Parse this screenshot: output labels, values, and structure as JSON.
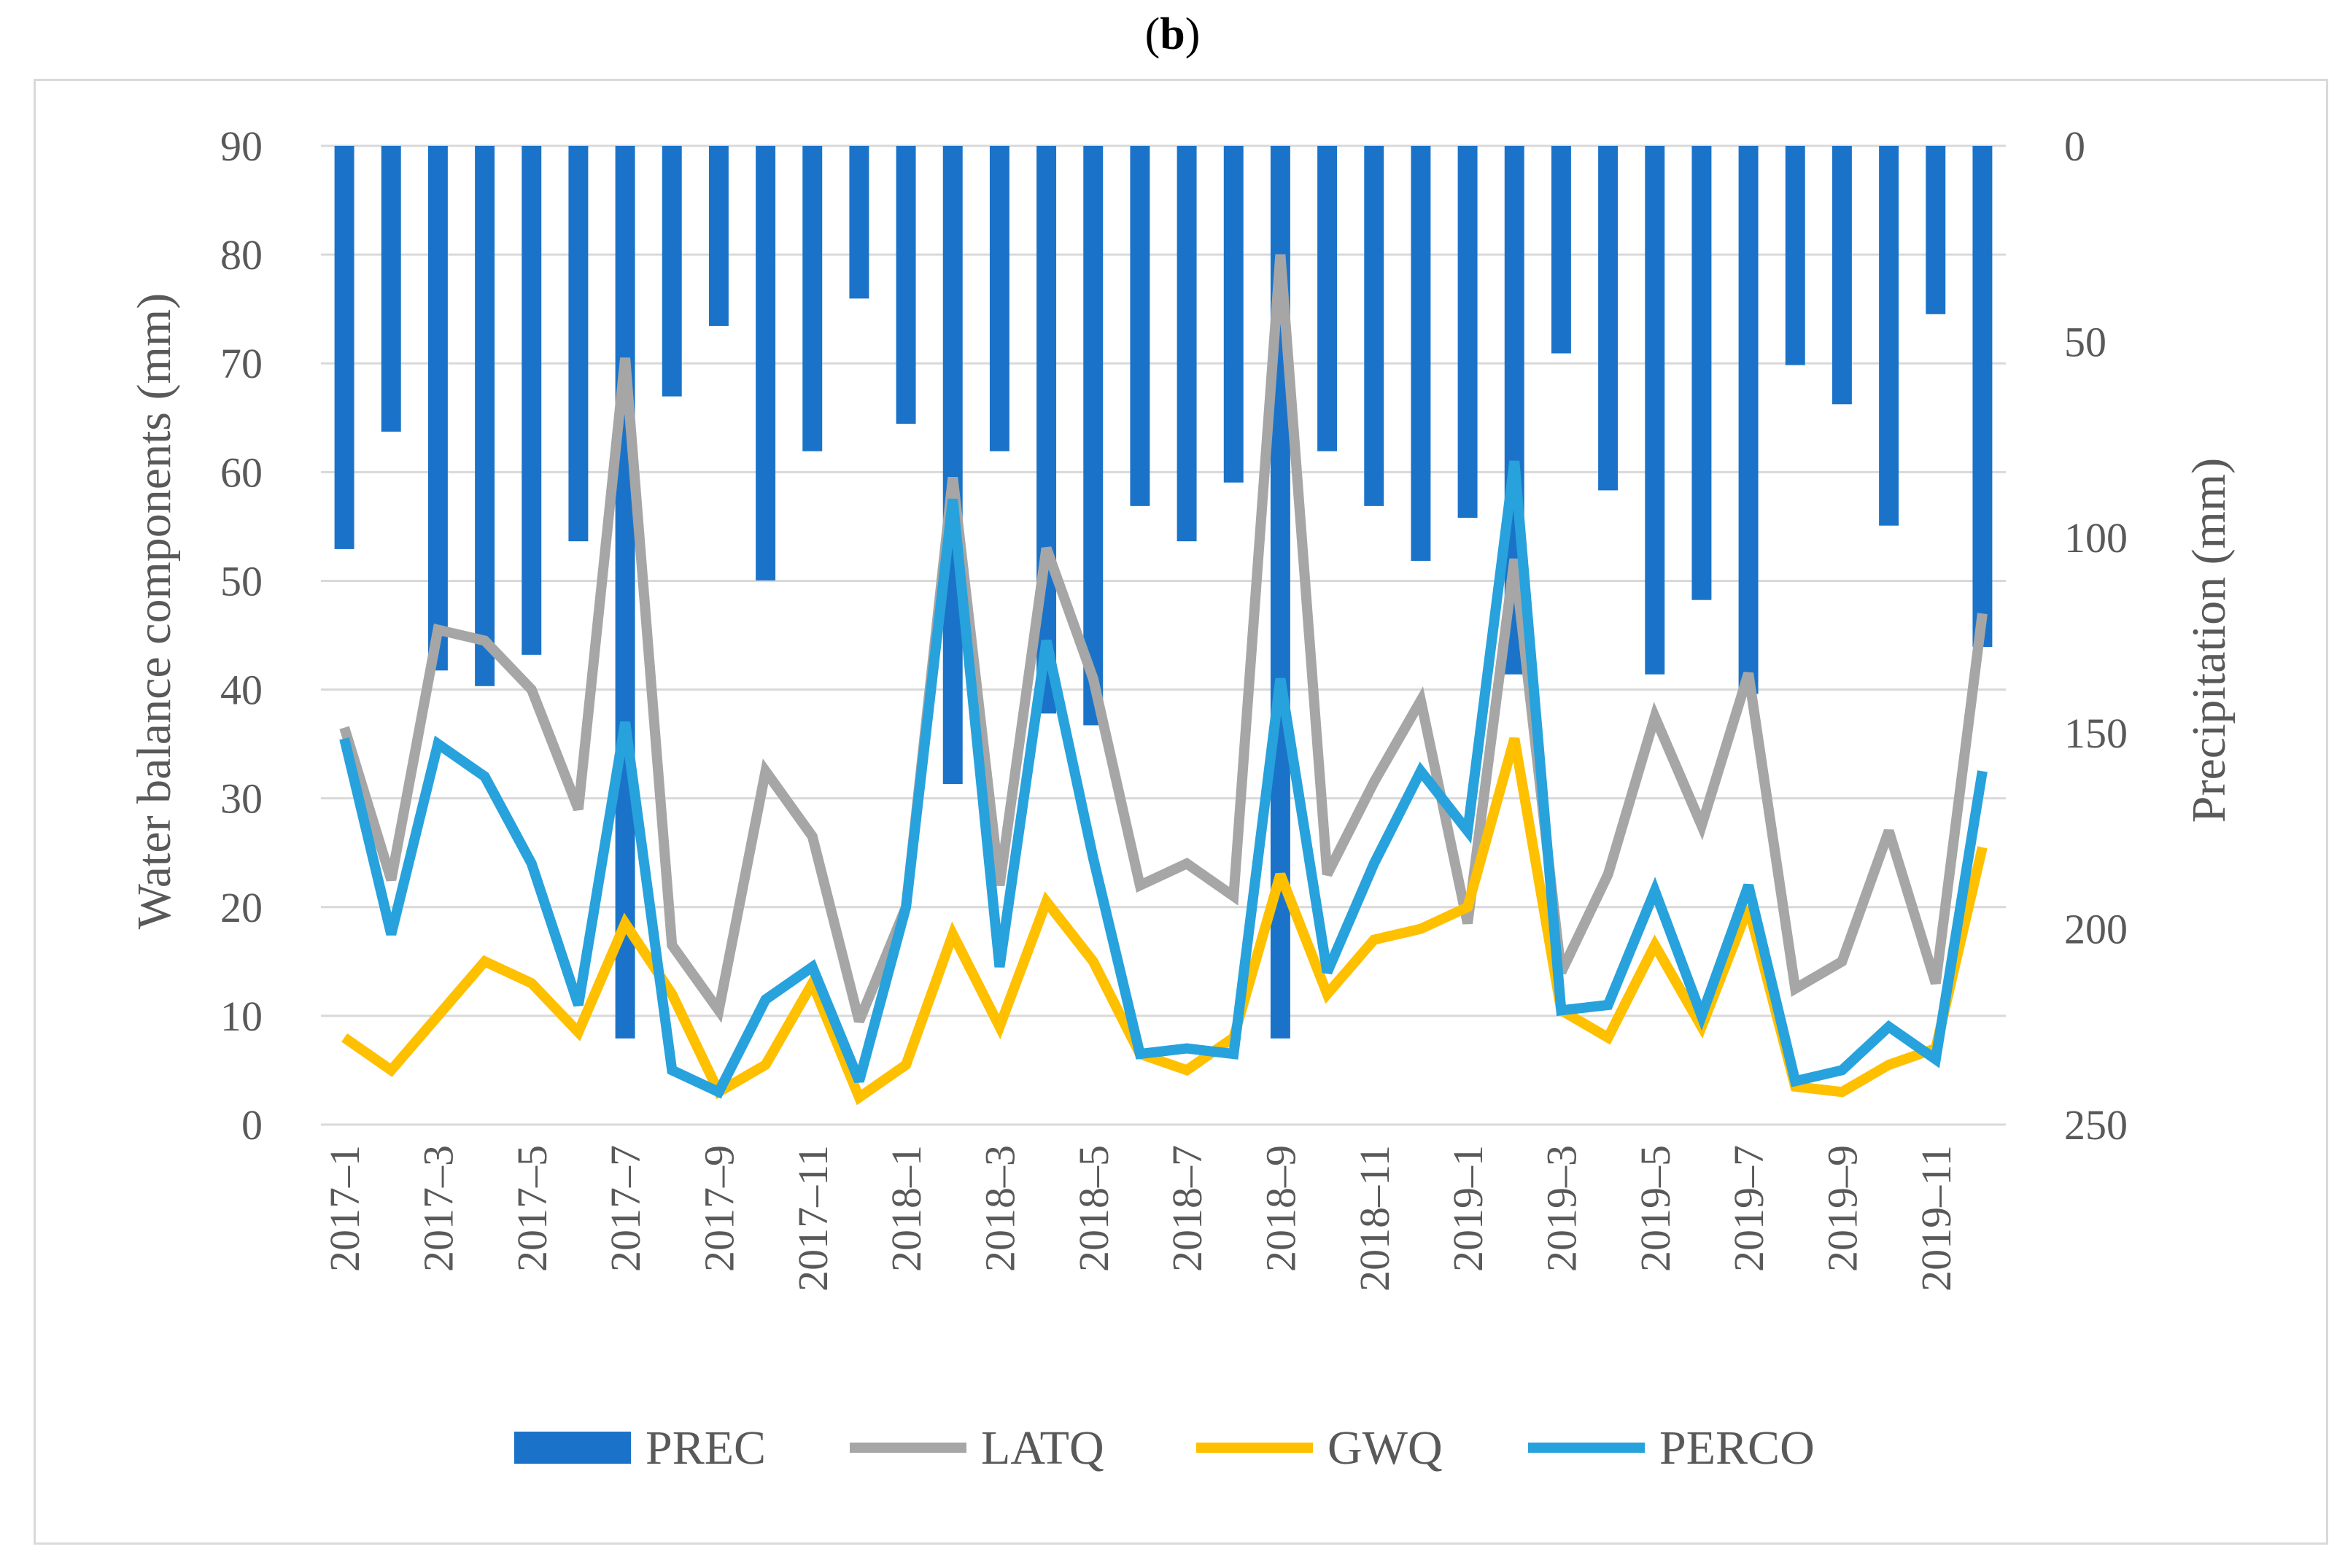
{
  "panel_label": {
    "open": "(",
    "letter": "b",
    "close": ")"
  },
  "chart_data": {
    "type": "bar+line",
    "title": "(b)",
    "categories": [
      "2017–1",
      "2017–2",
      "2017–3",
      "2017–4",
      "2017–5",
      "2017–6",
      "2017–7",
      "2017–8",
      "2017–9",
      "2017–10",
      "2017–11",
      "2017–12",
      "2018–1",
      "2018–2",
      "2018–3",
      "2018–4",
      "2018–5",
      "2018–6",
      "2018–7",
      "2018–8",
      "2018–9",
      "2018–10",
      "2018–11",
      "2018–12",
      "2019–1",
      "2019–2",
      "2019–3",
      "2019–4",
      "2019–5",
      "2019–6",
      "2019–7",
      "2019–8",
      "2019–9",
      "2019–10",
      "2019–11",
      "2019–12"
    ],
    "x_tick_labels": [
      "2017–1",
      "2017–3",
      "2017–5",
      "2017–7",
      "2017–9",
      "2017–11",
      "2018–1",
      "2018–3",
      "2018–5",
      "2018–7",
      "2018–9",
      "2018–11",
      "2019–1",
      "2019–3",
      "2019–5",
      "2019–7",
      "2019–9",
      "2019–11"
    ],
    "ylabel": "Water balance components (mm)",
    "y2label": "Precipitation (mm)",
    "ylim": [
      0,
      90
    ],
    "y_ticks": [
      0,
      10,
      20,
      30,
      40,
      50,
      60,
      70,
      80,
      90
    ],
    "y2lim": [
      250,
      0
    ],
    "y2_ticks": [
      0,
      50,
      100,
      150,
      200,
      250
    ],
    "grid": true,
    "legend_position": "bottom",
    "bar_series": {
      "name": "PREC",
      "axis": "secondary",
      "inverted": true,
      "color": "#1a73c9",
      "values": [
        103,
        73,
        134,
        138,
        130,
        101,
        228,
        64,
        46,
        111,
        78,
        39,
        71,
        163,
        78,
        145,
        148,
        92,
        101,
        86,
        228,
        78,
        92,
        106,
        95,
        135,
        53,
        88,
        135,
        116,
        140,
        56,
        66,
        97,
        43,
        128
      ]
    },
    "series": [
      {
        "name": "LATQ",
        "axis": "primary",
        "color": "#a6a6a6",
        "values": [
          36.5,
          22.5,
          45.5,
          44.5,
          40,
          29,
          70.5,
          16.5,
          10.5,
          32.5,
          26.5,
          9.5,
          20,
          59.5,
          22,
          53,
          41,
          22,
          24,
          21,
          80,
          23,
          31.5,
          39,
          18.5,
          52,
          14,
          23,
          37.5,
          27.5,
          41.5,
          12.5,
          15,
          27,
          13,
          47
        ]
      },
      {
        "name": "GWQ",
        "axis": "primary",
        "color": "#ffc000",
        "values": [
          8,
          5,
          10,
          15,
          13,
          8.5,
          18.5,
          12,
          3,
          5.5,
          13,
          2.5,
          5.5,
          17.5,
          9,
          20.5,
          15,
          6.5,
          5,
          8,
          23,
          12,
          17,
          18,
          20,
          35.5,
          10.5,
          8,
          16.5,
          9,
          20,
          3.5,
          3,
          5.5,
          7,
          25.5
        ]
      },
      {
        "name": "PERCO",
        "axis": "primary",
        "color": "#27a2dc",
        "values": [
          35.5,
          17.5,
          35,
          32,
          24,
          11,
          37,
          5,
          3,
          11.5,
          14.5,
          4,
          20,
          57.5,
          14.5,
          44.5,
          24.5,
          6.5,
          7,
          6.5,
          41,
          14,
          24,
          32.5,
          27,
          61,
          10.5,
          11,
          21.5,
          10,
          22,
          4,
          5,
          9,
          6,
          32.5
        ]
      }
    ]
  }
}
